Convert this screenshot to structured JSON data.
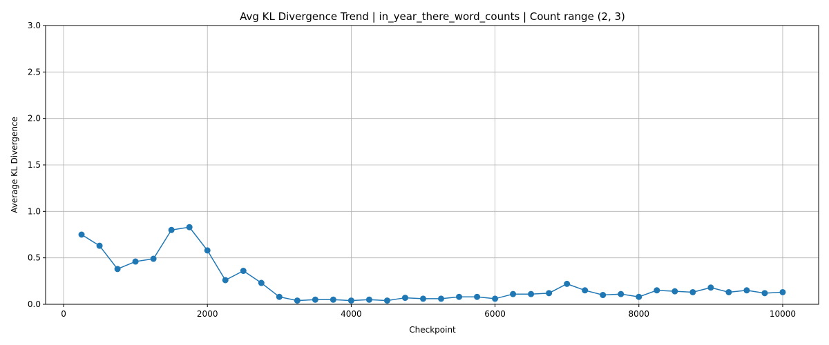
{
  "chart_data": {
    "type": "line",
    "title": "Avg KL Divergence Trend | in_year_there_word_counts | Count range (2, 3)",
    "xlabel": "Checkpoint",
    "ylabel": "Average KL Divergence",
    "xlim": [
      -250,
      10500
    ],
    "ylim": [
      0,
      3.0
    ],
    "xticks": [
      0,
      2000,
      4000,
      6000,
      8000,
      10000
    ],
    "yticks": [
      0.0,
      0.5,
      1.0,
      1.5,
      2.0,
      2.5,
      3.0
    ],
    "xtick_labels": [
      "0",
      "2000",
      "4000",
      "6000",
      "8000",
      "10000"
    ],
    "ytick_labels": [
      "0.0",
      "0.5",
      "1.0",
      "1.5",
      "2.0",
      "2.5",
      "3.0"
    ],
    "grid": true,
    "color": "#1f77b4",
    "marker": "circle",
    "series": [
      {
        "x": [
          250,
          500,
          750,
          1000,
          1250,
          1500,
          1750,
          2000,
          2250,
          2500,
          2750,
          3000,
          3250,
          3500,
          3750,
          4000,
          4250,
          4500,
          4750,
          5000,
          5250,
          5500,
          5750,
          6000,
          6250,
          6500,
          6750,
          7000,
          7250,
          7500,
          7750,
          8000,
          8250,
          8500,
          8750,
          9000,
          9250,
          9500,
          9750,
          10000
        ],
        "y": [
          0.75,
          0.63,
          0.38,
          0.46,
          0.49,
          0.8,
          0.83,
          0.58,
          0.26,
          0.36,
          0.23,
          0.08,
          0.04,
          0.05,
          0.05,
          0.04,
          0.05,
          0.04,
          0.07,
          0.06,
          0.06,
          0.08,
          0.08,
          0.06,
          0.11,
          0.11,
          0.12,
          0.22,
          0.15,
          0.1,
          0.11,
          0.08,
          0.15,
          0.14,
          0.13,
          0.18,
          0.13,
          0.15,
          0.12,
          0.13
        ]
      }
    ]
  }
}
